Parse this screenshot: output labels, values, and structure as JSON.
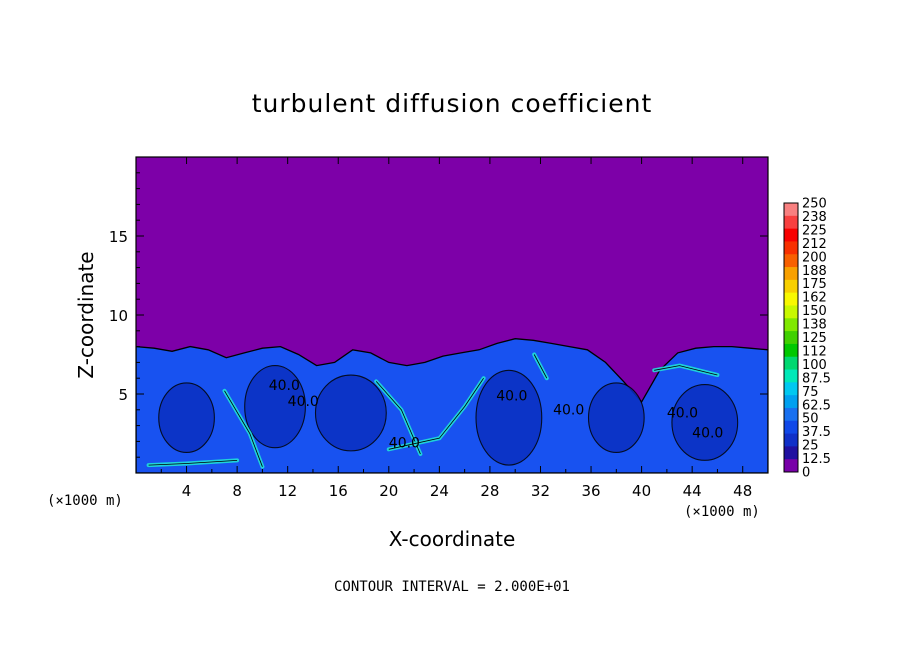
{
  "chart_data": {
    "type": "heatmap",
    "title": "turbulent diffusion coefficient",
    "xlabel": "X-coordinate",
    "ylabel": "Z-coordinate",
    "x_unit_left": "(×1000 m)",
    "x_unit_right": "(×1000 m)",
    "xlim": [
      0,
      50
    ],
    "ylim": [
      0,
      20
    ],
    "x_ticks": [
      "4",
      "8",
      "12",
      "16",
      "20",
      "24",
      "28",
      "32",
      "36",
      "40",
      "44",
      "48"
    ],
    "y_ticks": [
      "5",
      "10",
      "15"
    ],
    "colorbar": {
      "labels": [
        "250",
        "238",
        "225",
        "212",
        "200",
        "188",
        "175",
        "162",
        "150",
        "138",
        "125",
        "112",
        "100",
        "87.5",
        "75",
        "62.5",
        "50",
        "37.5",
        "25",
        "12.5",
        "0"
      ],
      "colors": [
        "#f88080",
        "#f84040",
        "#f80000",
        "#f83000",
        "#f86000",
        "#f8a000",
        "#f8d000",
        "#f8f800",
        "#c8f800",
        "#80e800",
        "#40d000",
        "#00c800",
        "#00d870",
        "#00e8b8",
        "#00c8f0",
        "#00a0f0",
        "#1870f0",
        "#1048e8",
        "#1030c8",
        "#2010a0",
        "#7800a8"
      ]
    },
    "background_value": 0,
    "upper_region_color": "#7d00a8",
    "field_color": "#1852f0",
    "interface_z": [
      8.0,
      7.9,
      7.7,
      8.0,
      7.8,
      7.3,
      7.6,
      7.9,
      8.0,
      7.5,
      6.8,
      7.0,
      7.8,
      7.6,
      7.0,
      6.8,
      7.0,
      7.4,
      7.6,
      7.8,
      8.2,
      8.5,
      8.4,
      8.2,
      8.0,
      7.8,
      7.0,
      5.8,
      4.5,
      6.5,
      7.6,
      7.9,
      8.0,
      8.0,
      7.9,
      7.8
    ],
    "contour_labels": [
      "40.0",
      "40.0",
      "40.0",
      "40.0",
      "40.0",
      "40.0",
      "40.0"
    ],
    "contour_interval_text": "CONTOUR INTERVAL = 2.000E+01"
  }
}
